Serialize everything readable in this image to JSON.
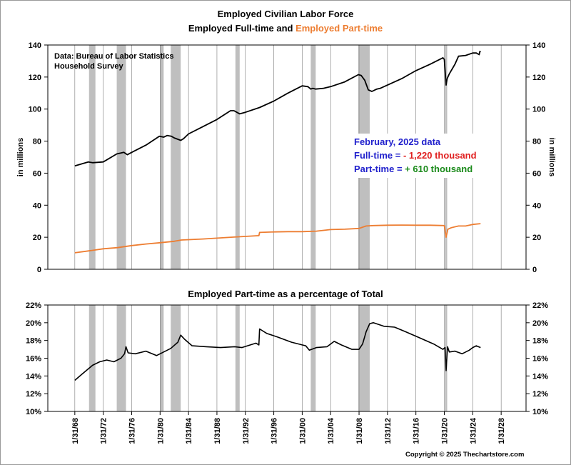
{
  "chart_data": [
    {
      "type": "line",
      "title": "Employed Civilian Labor Force",
      "subtitle_part1": "Employed Full-time and ",
      "subtitle_part2": "Employed Part-time",
      "ylabel_left": "in millions",
      "ylabel_right": "in millions",
      "ylim": [
        0,
        140
      ],
      "yticks": [
        0,
        20,
        40,
        60,
        80,
        100,
        120,
        140
      ],
      "source_line1": "Data:  Bureau of Labor Statistics",
      "source_line2": "Household Survey",
      "annotation": {
        "line1": "February, 2025 data",
        "line2_label": "Full-time = ",
        "line2_value": "- 1,220 thousand",
        "line3_label": "Part-time = ",
        "line3_value": "+ 610 thousand"
      },
      "series": [
        {
          "name": "Employed Full-time",
          "color": "#000000",
          "x": [
            1968.0,
            1969.9,
            1970.5,
            1972.0,
            1973.9,
            1974.9,
            1975.4,
            1976.0,
            1978.0,
            1979.9,
            1980.5,
            1981.0,
            1981.6,
            1982.0,
            1982.9,
            1983.3,
            1984.0,
            1986.0,
            1988.0,
            1989.9,
            1990.4,
            1990.6,
            1991.0,
            1991.2,
            1992.0,
            1994.0,
            1996.0,
            1998.0,
            2000.0,
            2000.8,
            2001.2,
            2001.5,
            2001.9,
            2003.0,
            2004.0,
            2006.0,
            2007.9,
            2008.3,
            2008.8,
            2009.3,
            2009.8,
            2010.5,
            2011.0,
            2012.0,
            2014.0,
            2016.0,
            2018.0,
            2019.8,
            2020.0,
            2020.25,
            2020.4,
            2020.7,
            2021.5,
            2022.0,
            2023.0,
            2024.0,
            2024.5,
            2024.9,
            2025.0,
            2025.1
          ],
          "values": [
            64.5,
            67,
            66.5,
            67,
            72,
            73,
            71.5,
            73,
            77.5,
            83,
            82.5,
            83.5,
            83,
            82,
            80.5,
            81.5,
            84.5,
            89,
            93.5,
            99,
            99,
            98.5,
            97.5,
            97,
            98,
            101,
            105,
            110,
            114.5,
            114,
            112.5,
            113,
            112.5,
            113,
            114,
            117,
            121.5,
            121,
            118,
            112,
            111,
            112.5,
            113,
            115,
            119,
            124,
            128,
            132,
            131,
            115,
            119,
            122,
            128,
            133,
            133.5,
            135,
            135,
            134,
            136,
            135.5
          ]
        },
        {
          "name": "Employed Part-time",
          "color": "#ed7d31",
          "x": [
            1968.0,
            1970.0,
            1972.0,
            1974.0,
            1976.0,
            1978.0,
            1980.0,
            1982.0,
            1983.0,
            1986.0,
            1990.0,
            1993.9,
            1994.0,
            1996.0,
            1998.0,
            2000.0,
            2002.0,
            2004.0,
            2006.0,
            2008.0,
            2009.0,
            2010.0,
            2012.0,
            2014.0,
            2016.0,
            2018.0,
            2020.0,
            2020.25,
            2020.5,
            2021.0,
            2022.0,
            2023.0,
            2024.0,
            2025.1
          ],
          "values": [
            10.3,
            11.5,
            12.8,
            13.5,
            14.8,
            15.8,
            16.6,
            17.5,
            18.3,
            18.9,
            20.0,
            21.0,
            23.0,
            23.3,
            23.5,
            23.5,
            23.8,
            24.8,
            25.0,
            25.5,
            27.0,
            27.3,
            27.5,
            27.6,
            27.5,
            27.5,
            27.3,
            20.0,
            25.0,
            26.0,
            27.0,
            27.0,
            28.0,
            28.5
          ]
        }
      ]
    },
    {
      "type": "line",
      "title": "Employed Part-time as a percentage of Total",
      "ylim": [
        10,
        22
      ],
      "yticks": [
        "10%",
        "12%",
        "14%",
        "16%",
        "18%",
        "20%",
        "22%"
      ],
      "series": [
        {
          "name": "Part-time share",
          "color": "#000000",
          "x": [
            1968.0,
            1969.0,
            1970.5,
            1971.5,
            1972.5,
            1973.5,
            1974.5,
            1975.0,
            1975.2,
            1975.5,
            1976.5,
            1978.0,
            1979.5,
            1980.5,
            1981.5,
            1982.5,
            1982.9,
            1983.5,
            1984.5,
            1986.5,
            1988.5,
            1990.5,
            1991.5,
            1993.5,
            1993.9,
            1994.0,
            1995.0,
            1996.5,
            1998.5,
            2000.5,
            2001.0,
            2002.0,
            2003.5,
            2004.5,
            2005.5,
            2007.0,
            2008.0,
            2008.5,
            2009.0,
            2009.5,
            2010.0,
            2011.5,
            2013.0,
            2014.5,
            2016.5,
            2018.5,
            2019.8,
            2020.1,
            2020.25,
            2020.45,
            2020.7,
            2021.5,
            2022.5,
            2023.5,
            2024.0,
            2024.5,
            2025.1
          ],
          "values": [
            13.5,
            14.2,
            15.2,
            15.6,
            15.8,
            15.6,
            16.0,
            16.5,
            17.3,
            16.6,
            16.5,
            16.8,
            16.3,
            16.7,
            17.1,
            17.8,
            18.6,
            18.1,
            17.4,
            17.3,
            17.2,
            17.3,
            17.2,
            17.7,
            17.5,
            19.3,
            18.8,
            18.4,
            17.8,
            17.4,
            16.9,
            17.2,
            17.3,
            17.9,
            17.5,
            17.0,
            17.0,
            17.6,
            19.0,
            19.9,
            20.0,
            19.6,
            19.5,
            19.0,
            18.3,
            17.6,
            17.0,
            17.2,
            14.6,
            17.3,
            16.7,
            16.8,
            16.5,
            16.9,
            17.2,
            17.4,
            17.2
          ]
        }
      ]
    }
  ],
  "x_axis": {
    "ticks": [
      "1/31/68",
      "1/31/72",
      "1/31/76",
      "1/31/80",
      "1/31/84",
      "1/31/88",
      "1/31/92",
      "1/31/96",
      "1/31/00",
      "1/31/04",
      "1/31/08",
      "1/31/12",
      "1/31/16",
      "1/31/20",
      "1/31/24",
      "1/31/28"
    ],
    "tick_years": [
      1968,
      1972,
      1976,
      1980,
      1984,
      1988,
      1992,
      1996,
      2000,
      2004,
      2008,
      2012,
      2016,
      2020,
      2024,
      2028
    ],
    "xlim": [
      1964.2,
      2031.5
    ]
  },
  "recessions": [
    [
      1970.0,
      1970.9
    ],
    [
      1973.9,
      1975.2
    ],
    [
      1980.0,
      1980.5
    ],
    [
      1981.5,
      1982.9
    ],
    [
      1990.6,
      1991.2
    ],
    [
      2001.2,
      2001.9
    ],
    [
      2007.9,
      2009.5
    ],
    [
      2020.1,
      2020.3
    ]
  ],
  "colors": {
    "recession": "#bfbfbf",
    "part_time": "#ed7d31",
    "ann_blue": "#1f1fcc",
    "ann_red": "#e02020",
    "ann_green": "#1a8a1a"
  },
  "copyright": "Copyright © 2025 Thechartstore.com"
}
